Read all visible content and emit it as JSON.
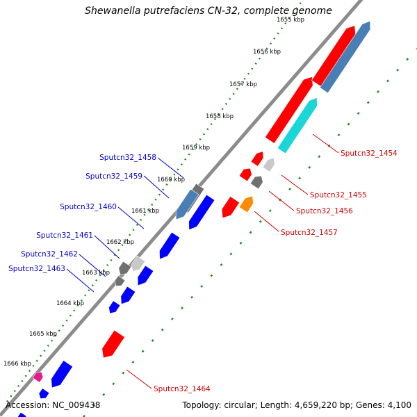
{
  "title": "Shewanella putrefaciens CN-32, complete genome",
  "footer": {
    "accession": "Accession: NC_009438",
    "topology": "Topology: circular; Length: 4,659,220 bp; Genes: 4,100"
  },
  "colors": {
    "backbone": "#8c8c8c",
    "kbp_dots": "#1a8c1a",
    "red": "#ff0000",
    "blue": "#0000ff",
    "steelblue": "#4a7fb5",
    "cyan": "#1ad6d6",
    "gray": "#707070",
    "lightgray": "#c8c8c8",
    "orange": "#ff8c00",
    "magenta": "#e61a8c",
    "label_blue": "#0000cc",
    "label_red": "#cc0000"
  },
  "kbp_labels": [
    "1655 kbp",
    "1656 kbp",
    "1657 kbp",
    "1658 kbp",
    "1659 kbp",
    "1660 kbp",
    "1661 kbp",
    "1662 kbp",
    "1663 kbp",
    "1664 kbp",
    "1665 kbp",
    "1666 kbp"
  ],
  "genes_left": [
    {
      "label": "Sputcn32_1458",
      "color": "steelblue"
    },
    {
      "label": "Sputcn32_1459",
      "color": "blue"
    },
    {
      "label": "Sputcn32_1460",
      "color": "blue"
    },
    {
      "label": "Sputcn32_1461",
      "color": "lightgray"
    },
    {
      "label": "Sputcn32_1462",
      "color": "gray"
    },
    {
      "label": "Sputcn32_1463",
      "color": "blue"
    }
  ],
  "genes_right": [
    {
      "label": "Sputcn32_1454",
      "color": "cyan"
    },
    {
      "label": "Sputcn32_1455",
      "color": "lightgray"
    },
    {
      "label": "Sputcn32_1456",
      "color": "gray"
    },
    {
      "label": "Sputcn32_1457",
      "color": "orange"
    },
    {
      "label": "Sputcn32_1464",
      "color": "red"
    }
  ]
}
